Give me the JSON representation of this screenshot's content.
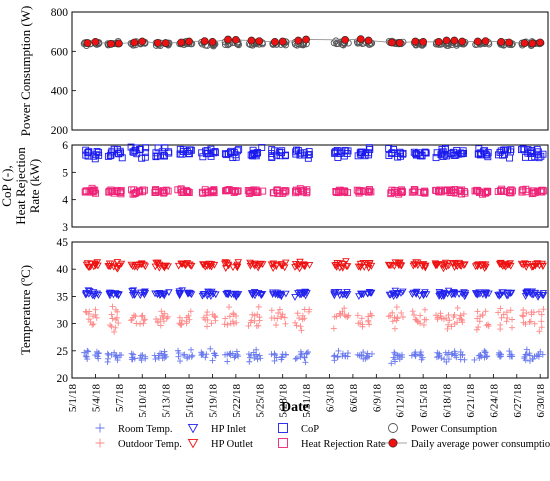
{
  "chart_data": {
    "type": "scatter",
    "xlabel": "Date",
    "x_tick_labels": [
      "5/1/18",
      "5/4/18",
      "5/7/18",
      "5/10/18",
      "5/13/18",
      "5/16/18",
      "5/19/18",
      "5/22/18",
      "5/25/18",
      "5/28/18",
      "5/31/18",
      "6/3/18",
      "6/6/18",
      "6/9/18",
      "6/12/18",
      "6/15/18",
      "6/18/18",
      "6/21/18",
      "6/24/18",
      "6/27/18",
      "6/30/18"
    ],
    "x_range_days": [
      0,
      61
    ],
    "active_days": [
      2,
      3,
      5,
      6,
      8,
      9,
      11,
      12,
      14,
      15,
      17,
      18,
      20,
      21,
      23,
      24,
      26,
      27,
      29,
      30,
      34,
      35,
      37,
      38,
      41,
      42,
      44,
      45,
      47,
      48,
      49,
      50,
      52,
      53,
      55,
      56,
      58,
      59,
      60
    ],
    "panels": [
      {
        "id": "power",
        "ylabel": "Power Consumption (W)",
        "ylim": [
          200,
          800
        ],
        "yticks": [
          200,
          400,
          600,
          800
        ],
        "series": [
          {
            "name": "Power Consumption",
            "marker": "circle-open",
            "color": "#555555",
            "y_center": 640,
            "y_spread": 15
          },
          {
            "name": "Daily average power consumption",
            "marker": "circle-filled-line",
            "color": "#ee1111",
            "days": [
              2,
              3,
              5,
              6,
              8,
              9,
              11,
              12,
              14,
              15,
              17,
              18,
              20,
              21,
              23,
              24,
              26,
              27,
              29,
              30,
              35,
              37,
              38,
              41,
              42,
              44,
              45,
              47,
              48,
              49,
              50,
              52,
              53,
              55,
              56,
              58,
              59,
              60
            ],
            "values": [
              642,
              648,
              638,
              640,
              645,
              650,
              643,
              642,
              645,
              650,
              652,
              648,
              660,
              658,
              655,
              652,
              648,
              650,
              655,
              660,
              658,
              662,
              655,
              645,
              643,
              650,
              648,
              648,
              655,
              655,
              650,
              650,
              652,
              648,
              645,
              642,
              640,
              645
            ]
          }
        ]
      },
      {
        "id": "cop",
        "ylabel": "CoP (-), Heat Rejection Rate (kW)",
        "ylabel_lines": [
          "CoP (-),",
          "Heat Rejection",
          "Rate (kW)"
        ],
        "ylim": [
          3,
          6
        ],
        "yticks": [
          3,
          4,
          5,
          6
        ],
        "series": [
          {
            "name": "CoP",
            "marker": "square-open",
            "color": "#1a1aee",
            "y_center": 5.7,
            "y_spread": 0.25
          },
          {
            "name": "Heat Rejection Rate",
            "marker": "square-open",
            "color": "#ee2277",
            "y_center": 4.3,
            "y_spread": 0.12
          }
        ]
      },
      {
        "id": "temp",
        "ylabel": "Temperature (ºC)",
        "ylim": [
          20,
          45
        ],
        "yticks": [
          20,
          25,
          30,
          35,
          40,
          45
        ],
        "series": [
          {
            "name": "Room Temp.",
            "marker": "plus",
            "color": "#6677ee",
            "y_center": 24,
            "y_spread": 1.5
          },
          {
            "name": "Outdoor Temp.",
            "marker": "plus",
            "color": "#ff8888",
            "y_center": 31,
            "y_spread": 2.8
          },
          {
            "name": "HP Inlet",
            "marker": "triangle-down-open",
            "color": "#2222ee",
            "y_center": 35.5,
            "y_spread": 0.7
          },
          {
            "name": "HP Outlet",
            "marker": "triangle-down-open",
            "color": "#ee1111",
            "y_center": 40.8,
            "y_spread": 0.8
          }
        ]
      }
    ],
    "legend": {
      "position": "bottom",
      "entries": [
        {
          "label": "Room Temp.",
          "marker": "plus",
          "color": "#6677ee"
        },
        {
          "label": "HP Inlet",
          "marker": "triangle-down-open",
          "color": "#2222ee"
        },
        {
          "label": "CoP",
          "marker": "square-open",
          "color": "#1a1aee"
        },
        {
          "label": "Power Consumption",
          "marker": "circle-open",
          "color": "#555555"
        },
        {
          "label": "Outdoor Temp.",
          "marker": "plus",
          "color": "#ff8888"
        },
        {
          "label": "HP Outlet",
          "marker": "triangle-down-open",
          "color": "#ee1111"
        },
        {
          "label": "Heat Rejection Rate",
          "marker": "square-open",
          "color": "#ee2277"
        },
        {
          "label": "Daily average power consumption",
          "marker": "circle-filled-line",
          "color": "#ee1111"
        }
      ]
    }
  }
}
